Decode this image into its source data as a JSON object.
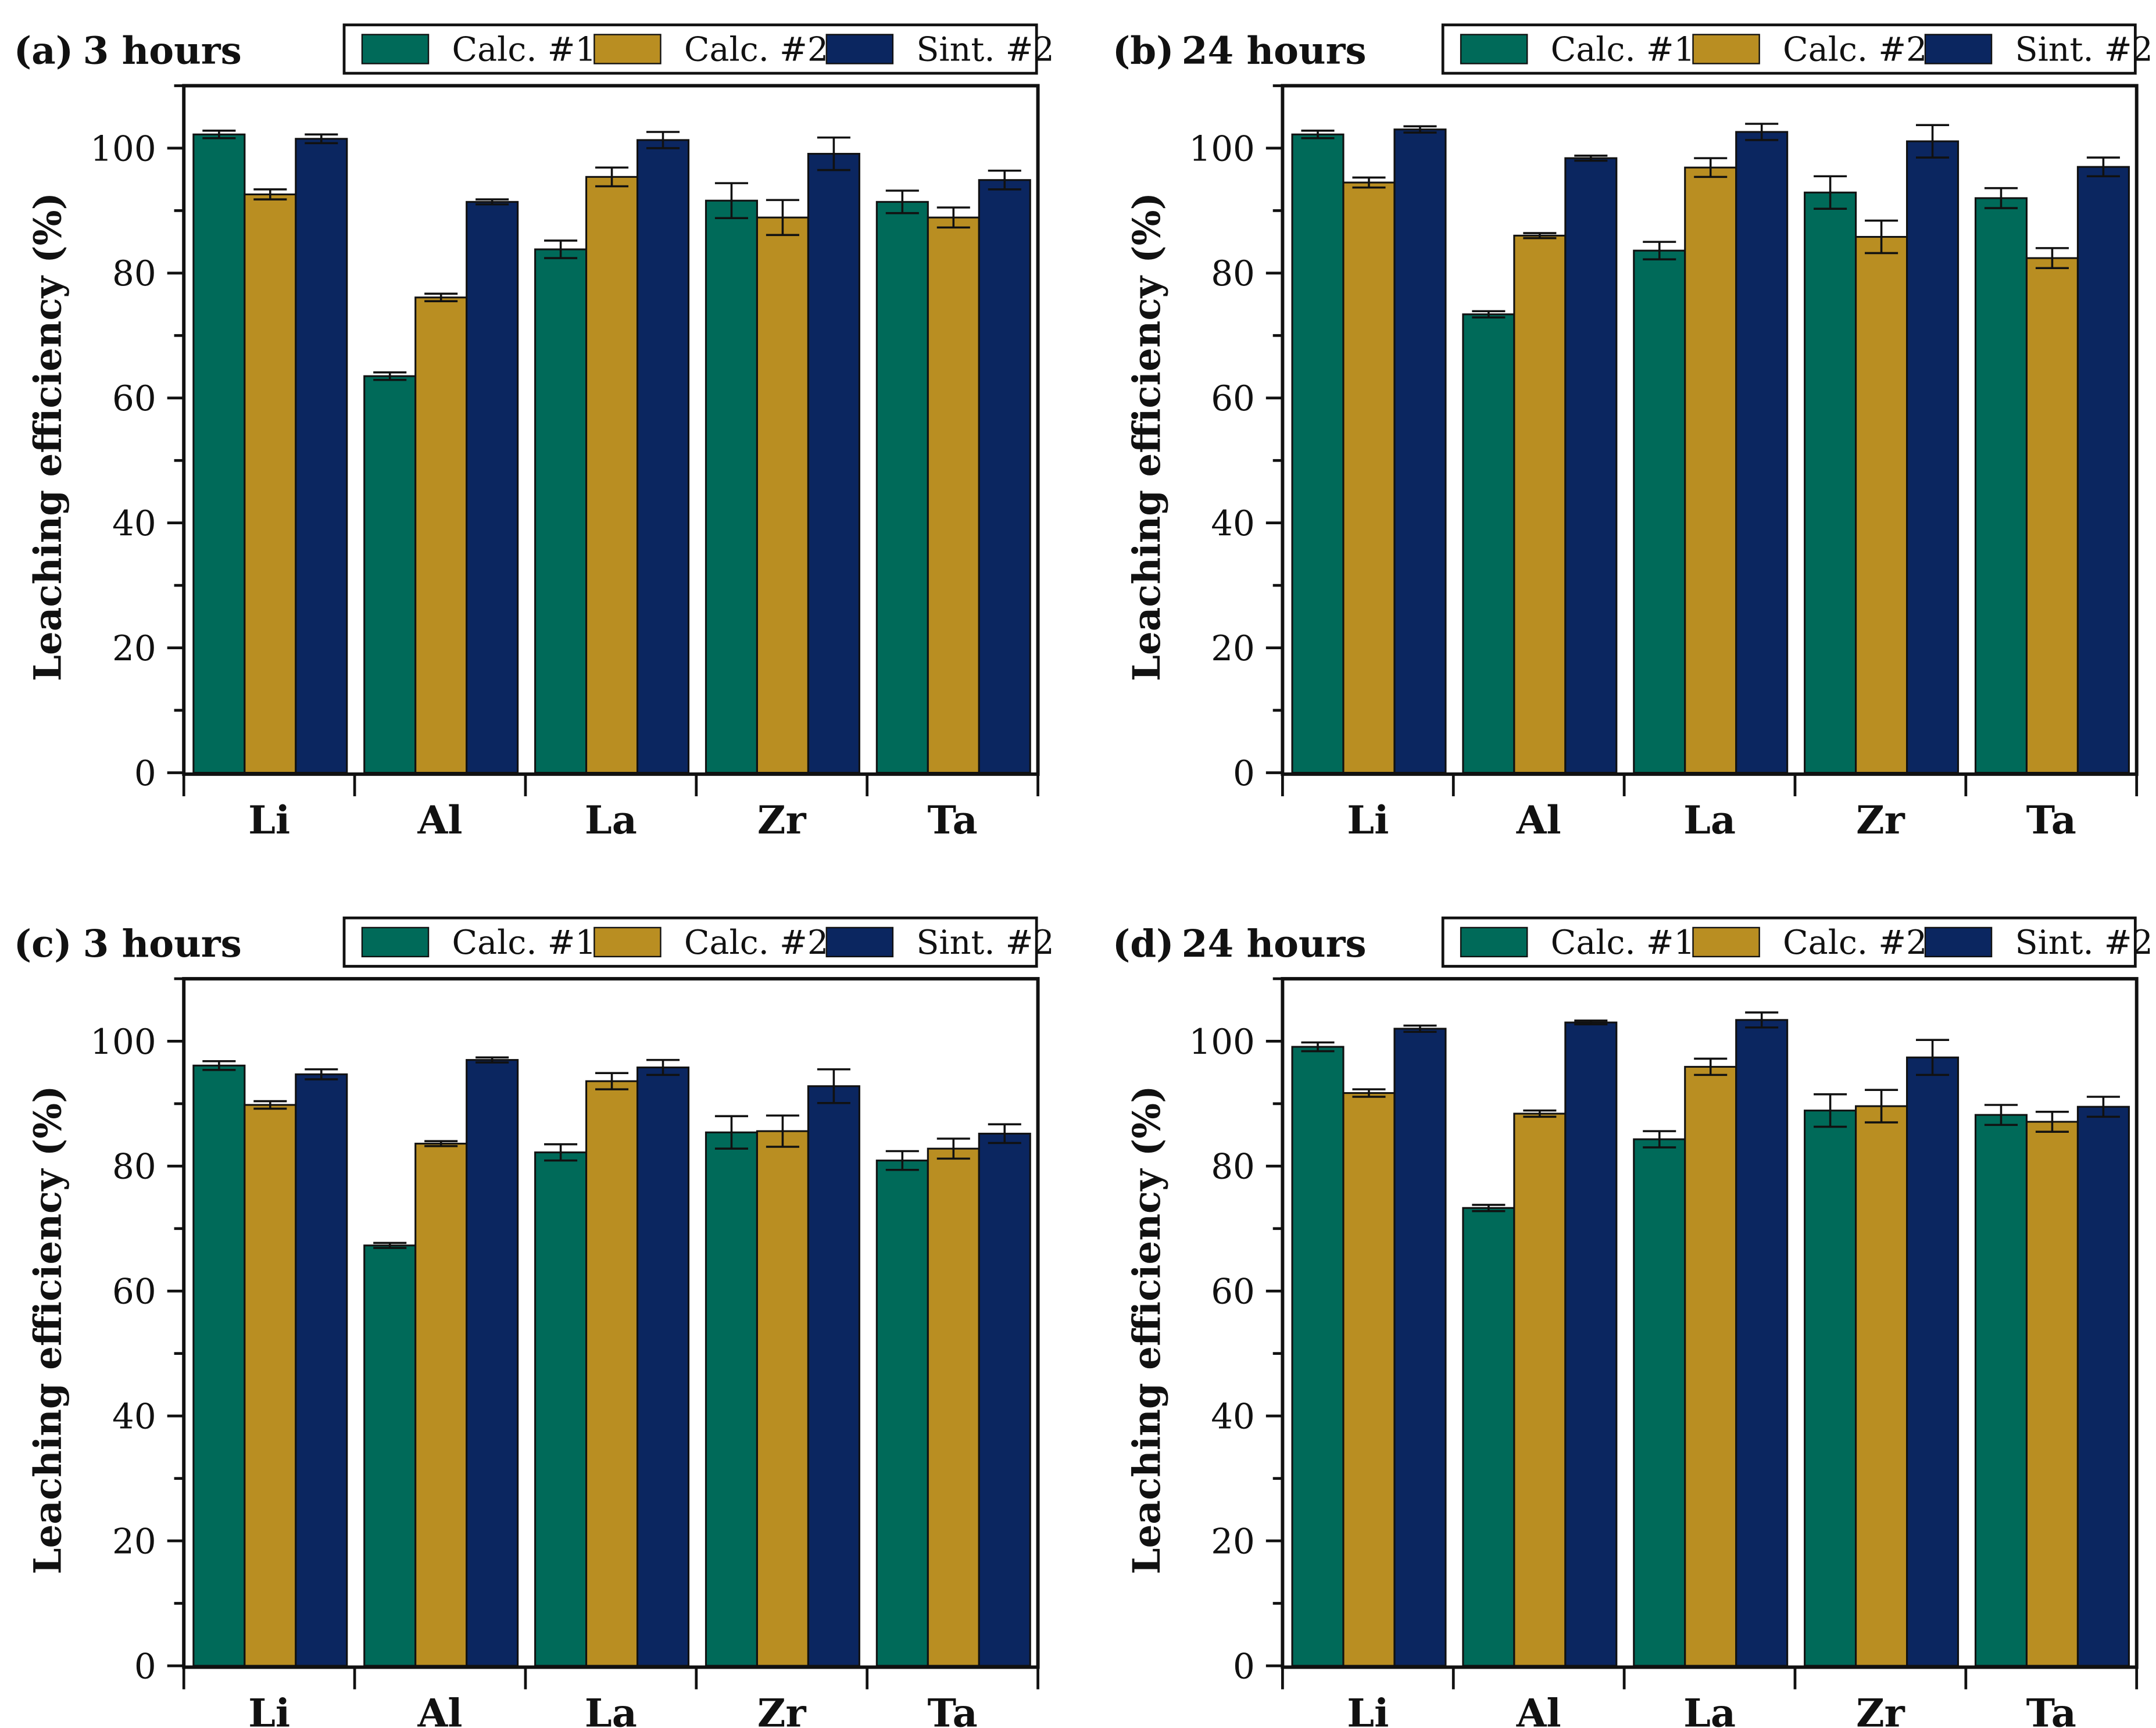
{
  "colors": {
    "Calc. #1": "#006a59",
    "Calc. #2": "#b98e22",
    "Sint. #2": "#0b2660"
  },
  "chart_data": [
    {
      "type": "bar",
      "panel_label": "(a)",
      "title": "3 hours",
      "xlabel": "",
      "ylabel": "Leaching efficiency (%)",
      "ylim": [
        0,
        110
      ],
      "yticks": [
        0,
        20,
        40,
        60,
        80,
        100
      ],
      "legend": "top-right",
      "categories": [
        "Li",
        "Al",
        "La",
        "Zr",
        "Ta"
      ],
      "series": [
        {
          "name": "Calc. #1",
          "values": [
            102.2,
            63.5,
            83.8,
            91.6,
            91.4
          ],
          "errors": [
            0.6,
            0.6,
            1.4,
            2.8,
            1.8
          ]
        },
        {
          "name": "Calc. #2",
          "values": [
            92.6,
            76.1,
            95.4,
            88.9,
            88.9
          ],
          "errors": [
            0.8,
            0.6,
            1.5,
            2.8,
            1.6
          ]
        },
        {
          "name": "Sint. #2",
          "values": [
            101.5,
            91.4,
            101.3,
            99.1,
            94.9
          ],
          "errors": [
            0.7,
            0.4,
            1.3,
            2.6,
            1.5
          ]
        }
      ]
    },
    {
      "type": "bar",
      "panel_label": "(b)",
      "title": "24 hours",
      "xlabel": "",
      "ylabel": "Leaching efficiency (%)",
      "ylim": [
        0,
        110
      ],
      "yticks": [
        0,
        20,
        40,
        60,
        80,
        100
      ],
      "legend": "top-right",
      "categories": [
        "Li",
        "Al",
        "La",
        "Zr",
        "Ta"
      ],
      "series": [
        {
          "name": "Calc. #1",
          "values": [
            102.2,
            73.4,
            83.6,
            92.9,
            92.0
          ],
          "errors": [
            0.6,
            0.5,
            1.4,
            2.6,
            1.6
          ]
        },
        {
          "name": "Calc. #2",
          "values": [
            94.5,
            86.0,
            96.9,
            85.8,
            82.4
          ],
          "errors": [
            0.8,
            0.4,
            1.5,
            2.6,
            1.6
          ]
        },
        {
          "name": "Sint. #2",
          "values": [
            103.0,
            98.4,
            102.6,
            101.1,
            97.0
          ],
          "errors": [
            0.5,
            0.4,
            1.3,
            2.6,
            1.5
          ]
        }
      ]
    },
    {
      "type": "bar",
      "panel_label": "(c)",
      "title": "3 hours",
      "xlabel": "",
      "ylabel": "Leaching efficiency (%)",
      "ylim": [
        0,
        110
      ],
      "yticks": [
        0,
        20,
        40,
        60,
        80,
        100
      ],
      "legend": "top-right",
      "categories": [
        "Li",
        "Al",
        "La",
        "Zr",
        "Ta"
      ],
      "series": [
        {
          "name": "Calc. #1",
          "values": [
            96.1,
            67.3,
            82.2,
            85.4,
            80.9
          ],
          "errors": [
            0.7,
            0.4,
            1.3,
            2.6,
            1.5
          ]
        },
        {
          "name": "Calc. #2",
          "values": [
            89.8,
            83.6,
            93.6,
            85.6,
            82.8
          ],
          "errors": [
            0.6,
            0.4,
            1.3,
            2.5,
            1.6
          ]
        },
        {
          "name": "Sint. #2",
          "values": [
            94.7,
            97.0,
            95.8,
            92.8,
            85.2
          ],
          "errors": [
            0.8,
            0.4,
            1.2,
            2.7,
            1.5
          ]
        }
      ]
    },
    {
      "type": "bar",
      "panel_label": "(d)",
      "title": "24 hours",
      "xlabel": "",
      "ylabel": "Leaching efficiency (%)",
      "ylim": [
        0,
        110
      ],
      "yticks": [
        0,
        20,
        40,
        60,
        80,
        100
      ],
      "legend": "top-right",
      "categories": [
        "Li",
        "Al",
        "La",
        "Zr",
        "Ta"
      ],
      "series": [
        {
          "name": "Calc. #1",
          "values": [
            99.1,
            73.3,
            84.3,
            88.9,
            88.2
          ],
          "errors": [
            0.7,
            0.5,
            1.3,
            2.6,
            1.6
          ]
        },
        {
          "name": "Calc. #2",
          "values": [
            91.7,
            88.4,
            95.9,
            89.6,
            87.1
          ],
          "errors": [
            0.6,
            0.5,
            1.3,
            2.6,
            1.6
          ]
        },
        {
          "name": "Sint. #2",
          "values": [
            102.0,
            103.0,
            103.4,
            97.4,
            89.5
          ],
          "errors": [
            0.5,
            0.3,
            1.2,
            2.8,
            1.6
          ]
        }
      ]
    }
  ]
}
